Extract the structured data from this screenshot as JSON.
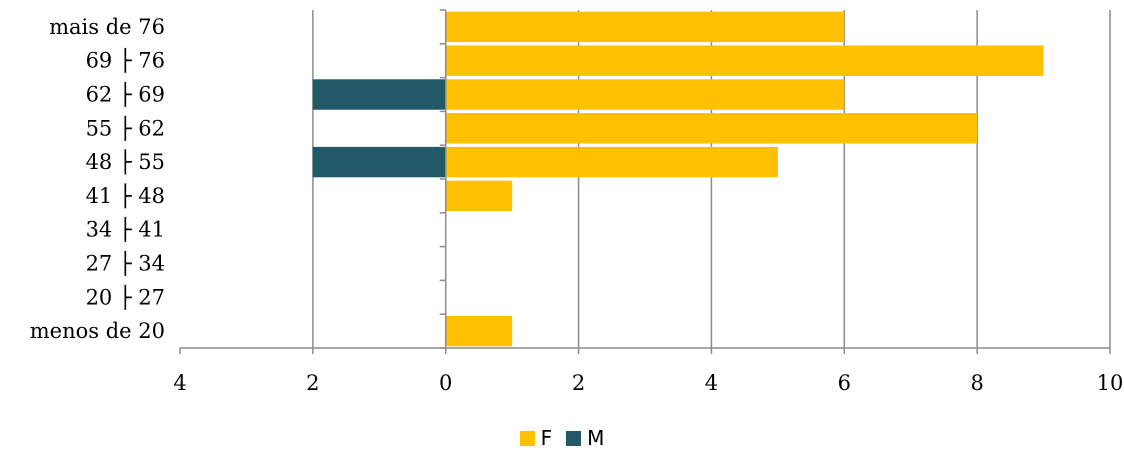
{
  "chart_data": {
    "type": "bar",
    "orientation": "horizontal",
    "stacked_diverging": true,
    "categories": [
      "menos de 20",
      "20 ├ 27",
      "27 ├ 34",
      "34 ├ 41",
      "41 ├ 48",
      "48 ├ 55",
      "55 ├ 62",
      "62 ├ 69",
      "69 ├ 76",
      "mais de 76"
    ],
    "series": [
      {
        "name": "F",
        "values": [
          1,
          0,
          0,
          0,
          1,
          5,
          8,
          6,
          9,
          6
        ],
        "color": "#FFC000",
        "direction": "positive"
      },
      {
        "name": "M",
        "values": [
          0,
          0,
          0,
          0,
          0,
          2,
          0,
          2,
          0,
          0
        ],
        "color": "#215968",
        "direction": "negative"
      }
    ],
    "xaxis": {
      "min": -4,
      "max": 10,
      "step": 2,
      "tick_labels": [
        "4",
        "2",
        "0",
        "2",
        "4",
        "6",
        "8",
        "10"
      ]
    },
    "title": "",
    "xlabel": "",
    "ylabel": "",
    "grid": "vertical",
    "legend": "bottom-center"
  }
}
